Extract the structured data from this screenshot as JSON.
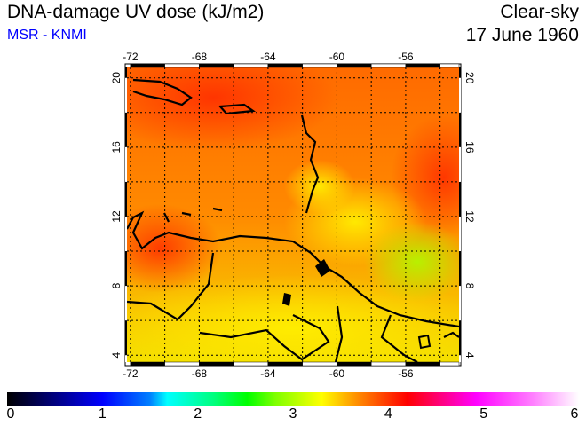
{
  "header": {
    "title": "DNA-damage UV dose (kJ/m2)",
    "source": "MSR - KNMI",
    "condition": "Clear-sky",
    "date": "17 June 1960"
  },
  "map": {
    "lon_labels": [
      "-72",
      "-68",
      "-64",
      "-60",
      "-56"
    ],
    "lat_labels": [
      "20",
      "16",
      "12",
      "8",
      "4"
    ],
    "lon_values": [
      -72,
      -68,
      -64,
      -60,
      -56
    ],
    "lat_values": [
      20,
      16,
      12,
      8,
      4
    ],
    "extent": {
      "lon": [
        -72.2,
        -52.9
      ],
      "lat": [
        3.6,
        20.6
      ]
    }
  },
  "colorbar": {
    "labels": [
      "0",
      "1",
      "2",
      "3",
      "4",
      "5",
      "6"
    ],
    "min": 0,
    "max": 6,
    "units": "kJ/m2"
  },
  "colors": {
    "source": "#0000ff"
  }
}
